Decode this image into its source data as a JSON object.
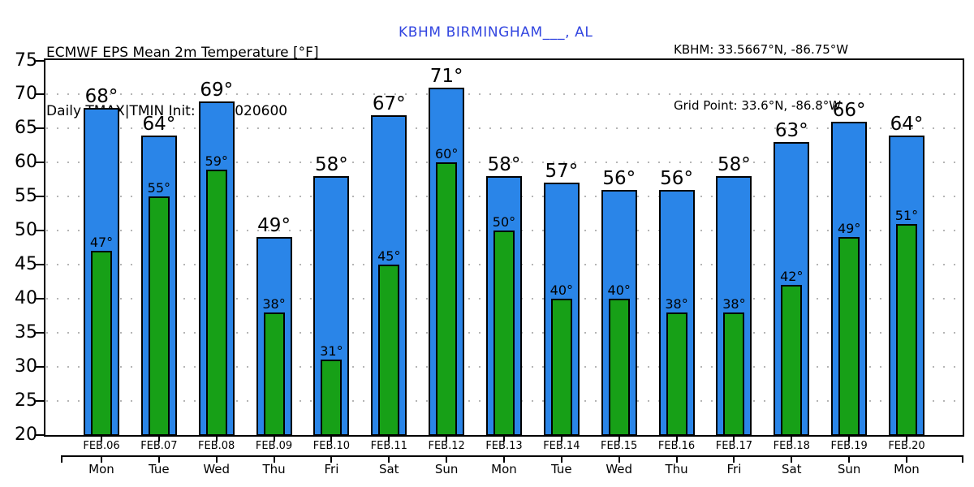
{
  "header": {
    "title_line1": "ECMWF EPS Mean 2m Temperature [°F]",
    "title_line2": "Daily TMAX|TMIN Init: 2017020600",
    "station": "KBHM BIRMINGHAM___, AL",
    "coords_line1": "KBHM: 33.5667°N, -86.75°W",
    "coords_line2": "Grid Point: 33.6°N, -86.8°W"
  },
  "colors": {
    "tmax_bar": "#2a85e8",
    "tmin_bar": "#17a017",
    "bar_outline": "#000000",
    "station_text": "#3346e0",
    "grid_dots": "#b5b5b5",
    "axis": "#000000"
  },
  "chart_data": {
    "type": "bar",
    "title": "ECMWF EPS Mean 2m Temperature [°F]",
    "subtitle": "Daily TMAX|TMIN Init: 2017020600",
    "categories": [
      "FEB.06",
      "FEB.07",
      "FEB.08",
      "FEB.09",
      "FEB.10",
      "FEB.11",
      "FEB.12",
      "FEB.13",
      "FEB.14",
      "FEB.15",
      "FEB.16",
      "FEB.17",
      "FEB.18",
      "FEB.19",
      "FEB.20"
    ],
    "weekdays": [
      "Mon",
      "Tue",
      "Wed",
      "Thu",
      "Fri",
      "Sat",
      "Sun",
      "Mon",
      "Tue",
      "Wed",
      "Thu",
      "Fri",
      "Sat",
      "Sun",
      "Mon"
    ],
    "series": [
      {
        "name": "TMAX",
        "values": [
          68,
          64,
          69,
          49,
          58,
          67,
          71,
          58,
          57,
          56,
          56,
          58,
          63,
          66,
          64
        ]
      },
      {
        "name": "TMIN",
        "values": [
          47,
          55,
          59,
          38,
          31,
          45,
          60,
          50,
          40,
          40,
          38,
          38,
          42,
          49,
          51
        ]
      }
    ],
    "unit": "°",
    "ylim": [
      20,
      75
    ],
    "ytick_step": 5,
    "grid": "dotted horizontal",
    "legend": "none"
  }
}
